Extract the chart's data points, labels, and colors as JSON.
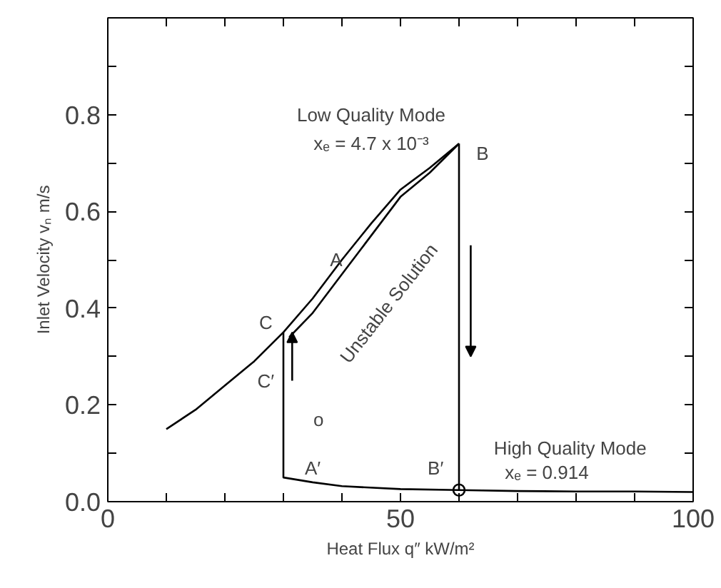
{
  "chart_data": {
    "type": "line",
    "xlabel": "Heat Flux q″ kW/m²",
    "ylabel": "Inlet Velocity vₙ m/s",
    "xlim": [
      0,
      100
    ],
    "ylim": [
      0,
      1.0
    ],
    "xticks": [
      0,
      50,
      100
    ],
    "yticks": [
      {
        "value": 0,
        "label": "0.0"
      },
      0.2,
      0.4,
      0.6,
      0.8,
      {
        "value": 1.0,
        "label": null
      }
    ],
    "grid": false,
    "series": [
      {
        "color": "#000000",
        "x": [
          10,
          15,
          20,
          25,
          30,
          35,
          40,
          45,
          50,
          55,
          60
        ],
        "values": [
          0.15,
          0.19,
          0.24,
          0.29,
          0.35,
          0.42,
          0.5,
          0.575,
          0.645,
          0.69,
          0.74
        ]
      },
      {
        "color": "#000000",
        "x": [
          31,
          35,
          40,
          45,
          50,
          55,
          60
        ],
        "values": [
          0.34,
          0.39,
          0.47,
          0.55,
          0.63,
          0.68,
          0.74
        ]
      },
      {
        "color": "#000000",
        "x": [
          30,
          30,
          35,
          40,
          50,
          60,
          70,
          80,
          90,
          100
        ],
        "values": [
          0.35,
          0.05,
          0.04,
          0.032,
          0.026,
          0.024,
          0.022,
          0.021,
          0.021,
          0.02
        ]
      },
      {
        "color": "#000000",
        "x": [
          60,
          60
        ],
        "values": [
          0.74,
          0.024
        ]
      },
      {
        "type": "scatter",
        "marker": "circle",
        "color": "#000000",
        "x": [
          60
        ],
        "values": [
          0.024
        ]
      }
    ],
    "annotations": [
      "Low Quality Mode",
      "xₑ = 4.7 x 10⁻³",
      "B",
      "A",
      "C",
      {
        "text": "C′",
        "x": 30,
        "y": 0.3
      },
      "Unstable Solution",
      "o",
      "A′",
      "B′",
      "High Quality Mode",
      "xₑ = 0.914"
    ]
  }
}
